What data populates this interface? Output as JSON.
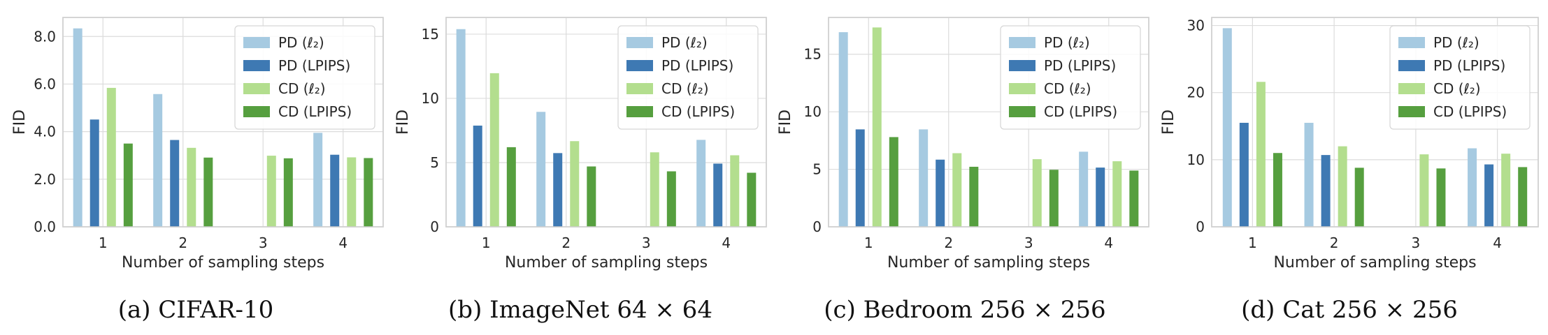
{
  "chart_data": [
    {
      "type": "bar",
      "caption": "(a) CIFAR-10",
      "xlabel": "Number of sampling steps",
      "ylabel": "FID",
      "categories": [
        "1",
        "2",
        "3",
        "4"
      ],
      "ylim": [
        0,
        8.8
      ],
      "yticks": [
        "0.0",
        "2.0",
        "4.0",
        "6.0",
        "8.0"
      ],
      "ytick_values": [
        0,
        2,
        4,
        6,
        8
      ],
      "series": [
        {
          "name": "PD (ℓ₂)",
          "color": "#a6cae1",
          "values": [
            8.34,
            5.58,
            null,
            3.95
          ]
        },
        {
          "name": "PD (LPIPS)",
          "color": "#3e79b3",
          "values": [
            4.51,
            3.65,
            null,
            3.03
          ]
        },
        {
          "name": "CD (ℓ₂)",
          "color": "#b3de8e",
          "values": [
            5.84,
            3.32,
            2.99,
            2.92
          ]
        },
        {
          "name": "CD (LPIPS)",
          "color": "#569f3f",
          "values": [
            3.5,
            2.91,
            2.88,
            2.89
          ]
        }
      ],
      "grid": true,
      "legend": "top-right"
    },
    {
      "type": "bar",
      "caption": "(b) ImageNet 64 × 64",
      "xlabel": "Number of sampling steps",
      "ylabel": "FID",
      "categories": [
        "1",
        "2",
        "3",
        "4"
      ],
      "ylim": [
        0,
        16.3
      ],
      "yticks": [
        "0",
        "5",
        "10",
        "15"
      ],
      "ytick_values": [
        0,
        5,
        10,
        15
      ],
      "series": [
        {
          "name": "PD (ℓ₂)",
          "color": "#a6cae1",
          "values": [
            15.39,
            8.95,
            null,
            6.77
          ]
        },
        {
          "name": "PD (LPIPS)",
          "color": "#3e79b3",
          "values": [
            7.88,
            5.74,
            null,
            4.92
          ]
        },
        {
          "name": "CD (ℓ₂)",
          "color": "#b3de8e",
          "values": [
            11.96,
            6.67,
            5.8,
            5.57
          ]
        },
        {
          "name": "CD (LPIPS)",
          "color": "#569f3f",
          "values": [
            6.2,
            4.7,
            4.32,
            4.21
          ]
        }
      ],
      "grid": true,
      "legend": "top-right"
    },
    {
      "type": "bar",
      "caption": "(c) Bedroom 256 × 256",
      "xlabel": "Number of sampling steps",
      "ylabel": "FID",
      "categories": [
        "1",
        "2",
        "3",
        "4"
      ],
      "ylim": [
        0,
        18.2
      ],
      "yticks": [
        "0",
        "5",
        "10",
        "15"
      ],
      "ytick_values": [
        0,
        5,
        10,
        15
      ],
      "series": [
        {
          "name": "PD (ℓ₂)",
          "color": "#a6cae1",
          "values": [
            16.92,
            8.47,
            null,
            6.53
          ]
        },
        {
          "name": "PD (LPIPS)",
          "color": "#3e79b3",
          "values": [
            8.47,
            5.84,
            null,
            5.15
          ]
        },
        {
          "name": "CD (ℓ₂)",
          "color": "#b3de8e",
          "values": [
            17.33,
            6.4,
            5.88,
            5.7
          ]
        },
        {
          "name": "CD (LPIPS)",
          "color": "#569f3f",
          "values": [
            7.8,
            5.22,
            4.96,
            4.89
          ]
        }
      ],
      "grid": true,
      "legend": "top-right"
    },
    {
      "type": "bar",
      "caption": "(d) Cat 256 × 256",
      "xlabel": "Number of sampling steps",
      "ylabel": "FID",
      "categories": [
        "1",
        "2",
        "3",
        "4"
      ],
      "ylim": [
        0,
        31.2
      ],
      "yticks": [
        "0",
        "10",
        "20",
        "30"
      ],
      "ytick_values": [
        0,
        10,
        20,
        30
      ],
      "series": [
        {
          "name": "PD (ℓ₂)",
          "color": "#a6cae1",
          "values": [
            29.6,
            15.5,
            null,
            11.7
          ]
        },
        {
          "name": "PD (LPIPS)",
          "color": "#3e79b3",
          "values": [
            15.5,
            10.7,
            null,
            9.3
          ]
        },
        {
          "name": "CD (ℓ₂)",
          "color": "#b3de8e",
          "values": [
            21.6,
            12.0,
            10.8,
            10.9
          ]
        },
        {
          "name": "CD (LPIPS)",
          "color": "#569f3f",
          "values": [
            11.0,
            8.8,
            8.7,
            8.9
          ]
        }
      ],
      "grid": true,
      "legend": "top-right"
    }
  ]
}
